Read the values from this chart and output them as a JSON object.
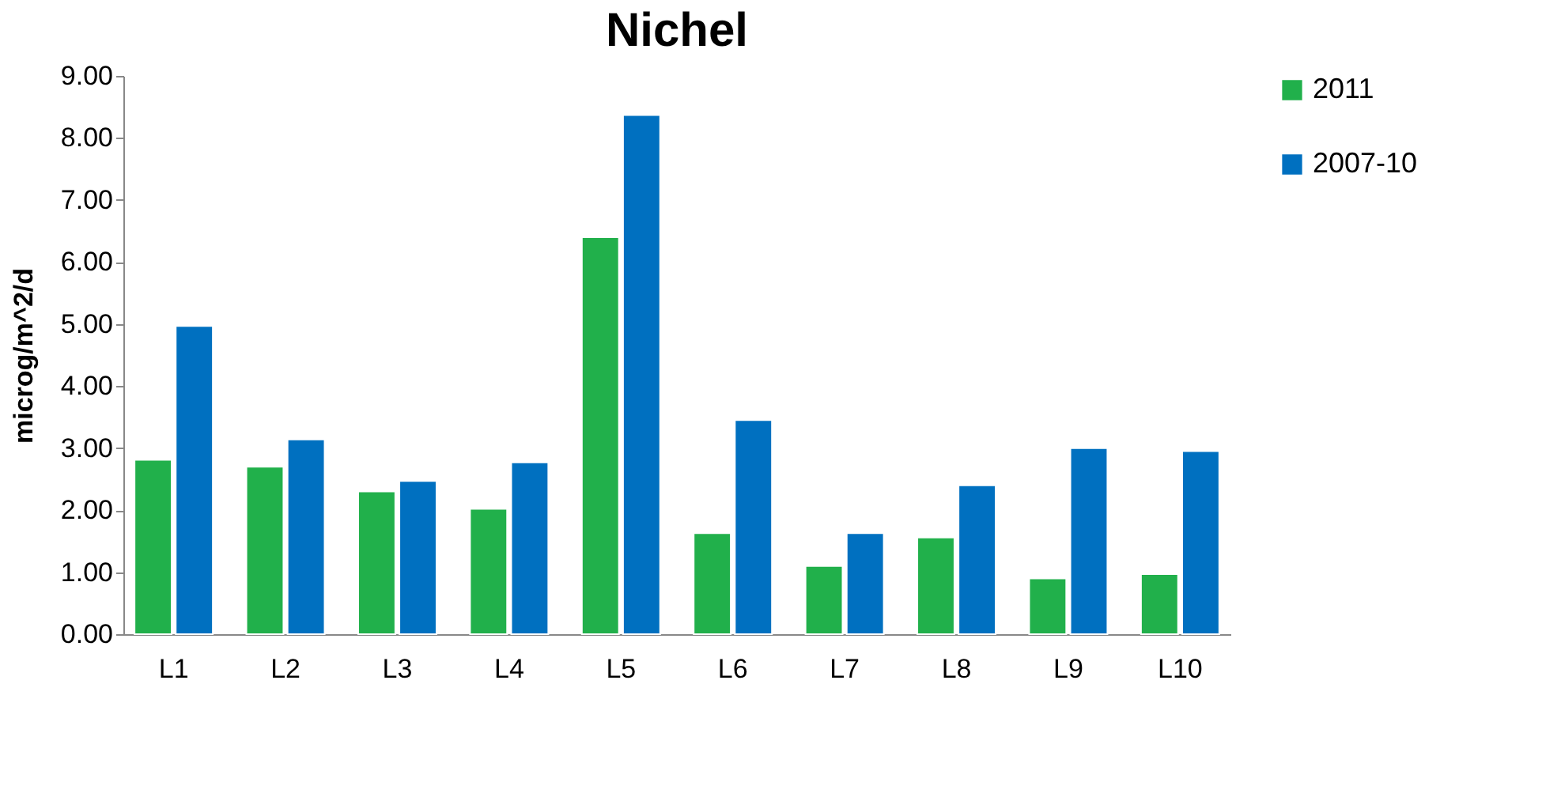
{
  "chart_data": {
    "type": "bar",
    "title": "Nichel",
    "ylabel": "microg/m^2/d",
    "categories": [
      "L1",
      "L2",
      "L3",
      "L4",
      "L5",
      "L6",
      "L7",
      "L8",
      "L9",
      "L10"
    ],
    "series": [
      {
        "name": "2011",
        "color": "#21b04b",
        "values": [
          2.81,
          2.7,
          2.3,
          2.02,
          6.4,
          1.63,
          1.1,
          1.56,
          0.9,
          0.97
        ]
      },
      {
        "name": "2007-10",
        "color": "#0070c0",
        "values": [
          4.97,
          3.14,
          2.47,
          2.77,
          8.37,
          3.45,
          1.63,
          2.4,
          3.0,
          2.95
        ]
      }
    ],
    "ylim": [
      0,
      9
    ],
    "yticks": [
      {
        "value": 0,
        "label": "0.00"
      },
      {
        "value": 1,
        "label": "1.00"
      },
      {
        "value": 2,
        "label": "2.00"
      },
      {
        "value": 3,
        "label": "3.00"
      },
      {
        "value": 4,
        "label": "4.00"
      },
      {
        "value": 5,
        "label": "5.00"
      },
      {
        "value": 6,
        "label": "6.00"
      },
      {
        "value": 7,
        "label": "7.00"
      },
      {
        "value": 8,
        "label": "8.00"
      },
      {
        "value": 9,
        "label": "9.00"
      }
    ],
    "grid": false,
    "legend": "right"
  }
}
